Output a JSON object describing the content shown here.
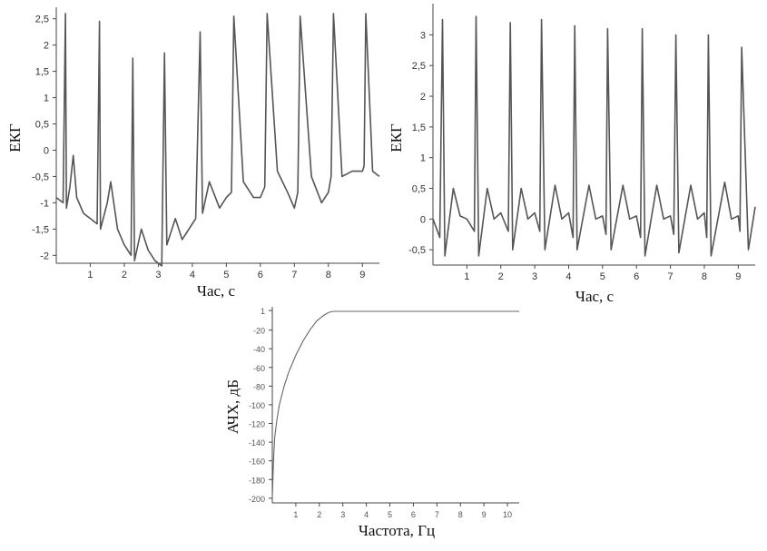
{
  "chart_data": [
    {
      "type": "line",
      "xlabel": "Час, с",
      "ylabel": "ЕКГ",
      "xticks": [
        "1",
        "2",
        "3",
        "4",
        "5",
        "6",
        "7",
        "8",
        "9"
      ],
      "yticks": [
        "2,5",
        "2",
        "1,5",
        "1",
        "0,5",
        "0",
        "-0,5",
        "-1",
        "-1,5",
        "-2"
      ],
      "xlim": [
        0,
        9.5
      ],
      "ylim": [
        -2.15,
        2.65
      ],
      "grid": false,
      "series": [
        {
          "values_description_free": true,
          "x": [
            0.0,
            0.2,
            0.27,
            0.3,
            0.4,
            0.5,
            0.6,
            0.8,
            1.0,
            1.2,
            1.27,
            1.3,
            1.5,
            1.6,
            1.8,
            2.0,
            2.2,
            2.25,
            2.3,
            2.5,
            2.7,
            2.9,
            3.1,
            3.18,
            3.25,
            3.5,
            3.7,
            3.9,
            4.1,
            4.23,
            4.3,
            4.5,
            4.8,
            5.0,
            5.15,
            5.22,
            5.5,
            5.8,
            6.0,
            6.13,
            6.2,
            6.5,
            6.8,
            7.0,
            7.1,
            7.17,
            7.5,
            7.8,
            8.0,
            8.08,
            8.15,
            8.4,
            8.7,
            9.0,
            9.05,
            9.1,
            9.3,
            9.5
          ],
          "y": [
            -0.9,
            -1.0,
            2.6,
            -1.1,
            -0.7,
            -0.1,
            -0.9,
            -1.2,
            -1.3,
            -1.4,
            2.45,
            -1.5,
            -1.0,
            -0.6,
            -1.5,
            -1.8,
            -2.0,
            1.75,
            -2.1,
            -1.5,
            -1.9,
            -2.1,
            -2.2,
            1.85,
            -1.8,
            -1.3,
            -1.7,
            -1.5,
            -1.3,
            2.25,
            -1.2,
            -0.6,
            -1.1,
            -0.9,
            -0.8,
            2.55,
            -0.6,
            -0.9,
            -0.9,
            -0.7,
            2.6,
            -0.4,
            -0.8,
            -1.1,
            -0.8,
            2.55,
            -0.5,
            -1.0,
            -0.8,
            -0.5,
            2.6,
            -0.5,
            -0.4,
            -0.4,
            -0.3,
            2.6,
            -0.4,
            -0.5
          ]
        }
      ]
    },
    {
      "type": "line",
      "xlabel": "Час, с",
      "ylabel": "ЕКГ",
      "xticks": [
        "1",
        "2",
        "3",
        "4",
        "5",
        "6",
        "7",
        "8",
        "9"
      ],
      "yticks": [
        "3",
        "2,5",
        "2",
        "1,5",
        "1",
        "0,5",
        "0",
        "-0,5"
      ],
      "xlim": [
        0,
        9.5
      ],
      "ylim": [
        -0.75,
        3.45
      ],
      "grid": false,
      "series": [
        {
          "x": [
            0.0,
            0.2,
            0.28,
            0.35,
            0.6,
            0.8,
            1.0,
            1.22,
            1.27,
            1.35,
            1.6,
            1.8,
            2.0,
            2.22,
            2.28,
            2.35,
            2.6,
            2.8,
            3.0,
            3.15,
            3.2,
            3.3,
            3.6,
            3.8,
            4.0,
            4.13,
            4.18,
            4.25,
            4.6,
            4.8,
            5.0,
            5.1,
            5.15,
            5.25,
            5.6,
            5.8,
            6.0,
            6.12,
            6.17,
            6.25,
            6.6,
            6.8,
            7.0,
            7.1,
            7.16,
            7.25,
            7.6,
            7.8,
            8.0,
            8.07,
            8.12,
            8.2,
            8.6,
            8.8,
            9.0,
            9.05,
            9.1,
            9.3,
            9.5
          ],
          "y": [
            0.0,
            -0.3,
            3.25,
            -0.6,
            0.5,
            0.05,
            0.0,
            -0.2,
            3.3,
            -0.6,
            0.5,
            0.0,
            0.1,
            -0.2,
            3.2,
            -0.5,
            0.5,
            0.0,
            0.1,
            -0.2,
            3.25,
            -0.5,
            0.55,
            0.0,
            0.1,
            -0.3,
            3.15,
            -0.5,
            0.55,
            0.0,
            0.05,
            -0.25,
            3.1,
            -0.5,
            0.55,
            0.0,
            0.05,
            -0.3,
            3.1,
            -0.6,
            0.55,
            0.0,
            0.05,
            -0.25,
            3.0,
            -0.55,
            0.55,
            0.0,
            0.1,
            -0.3,
            3.0,
            -0.6,
            0.6,
            0.0,
            0.05,
            -0.2,
            2.8,
            -0.5,
            0.2
          ]
        }
      ]
    },
    {
      "type": "line",
      "xlabel": "Частота, Гц",
      "ylabel": "АЧХ, дБ",
      "xticks": [
        "1",
        "2",
        "3",
        "4",
        "5",
        "6",
        "7",
        "8",
        "9",
        "10"
      ],
      "yticks": [
        "1",
        "-20",
        "-40",
        "-60",
        "-80",
        "-100",
        "-120",
        "-140",
        "-160",
        "-180",
        "-200"
      ],
      "xlim": [
        0,
        10.5
      ],
      "ylim": [
        -205,
        1
      ],
      "grid": false,
      "series": [
        {
          "x": [
            0.0,
            0.05,
            0.1,
            0.2,
            0.3,
            0.5,
            0.7,
            1.0,
            1.3,
            1.6,
            1.9,
            2.2,
            2.4,
            2.6,
            3.0,
            4.0,
            6.0,
            8.0,
            10.5
          ],
          "y": [
            -200,
            -160,
            -135,
            -115,
            -100,
            -80,
            -65,
            -47,
            -32,
            -20,
            -10,
            -4,
            -1,
            0,
            0,
            0,
            0,
            0,
            0
          ]
        }
      ]
    }
  ]
}
